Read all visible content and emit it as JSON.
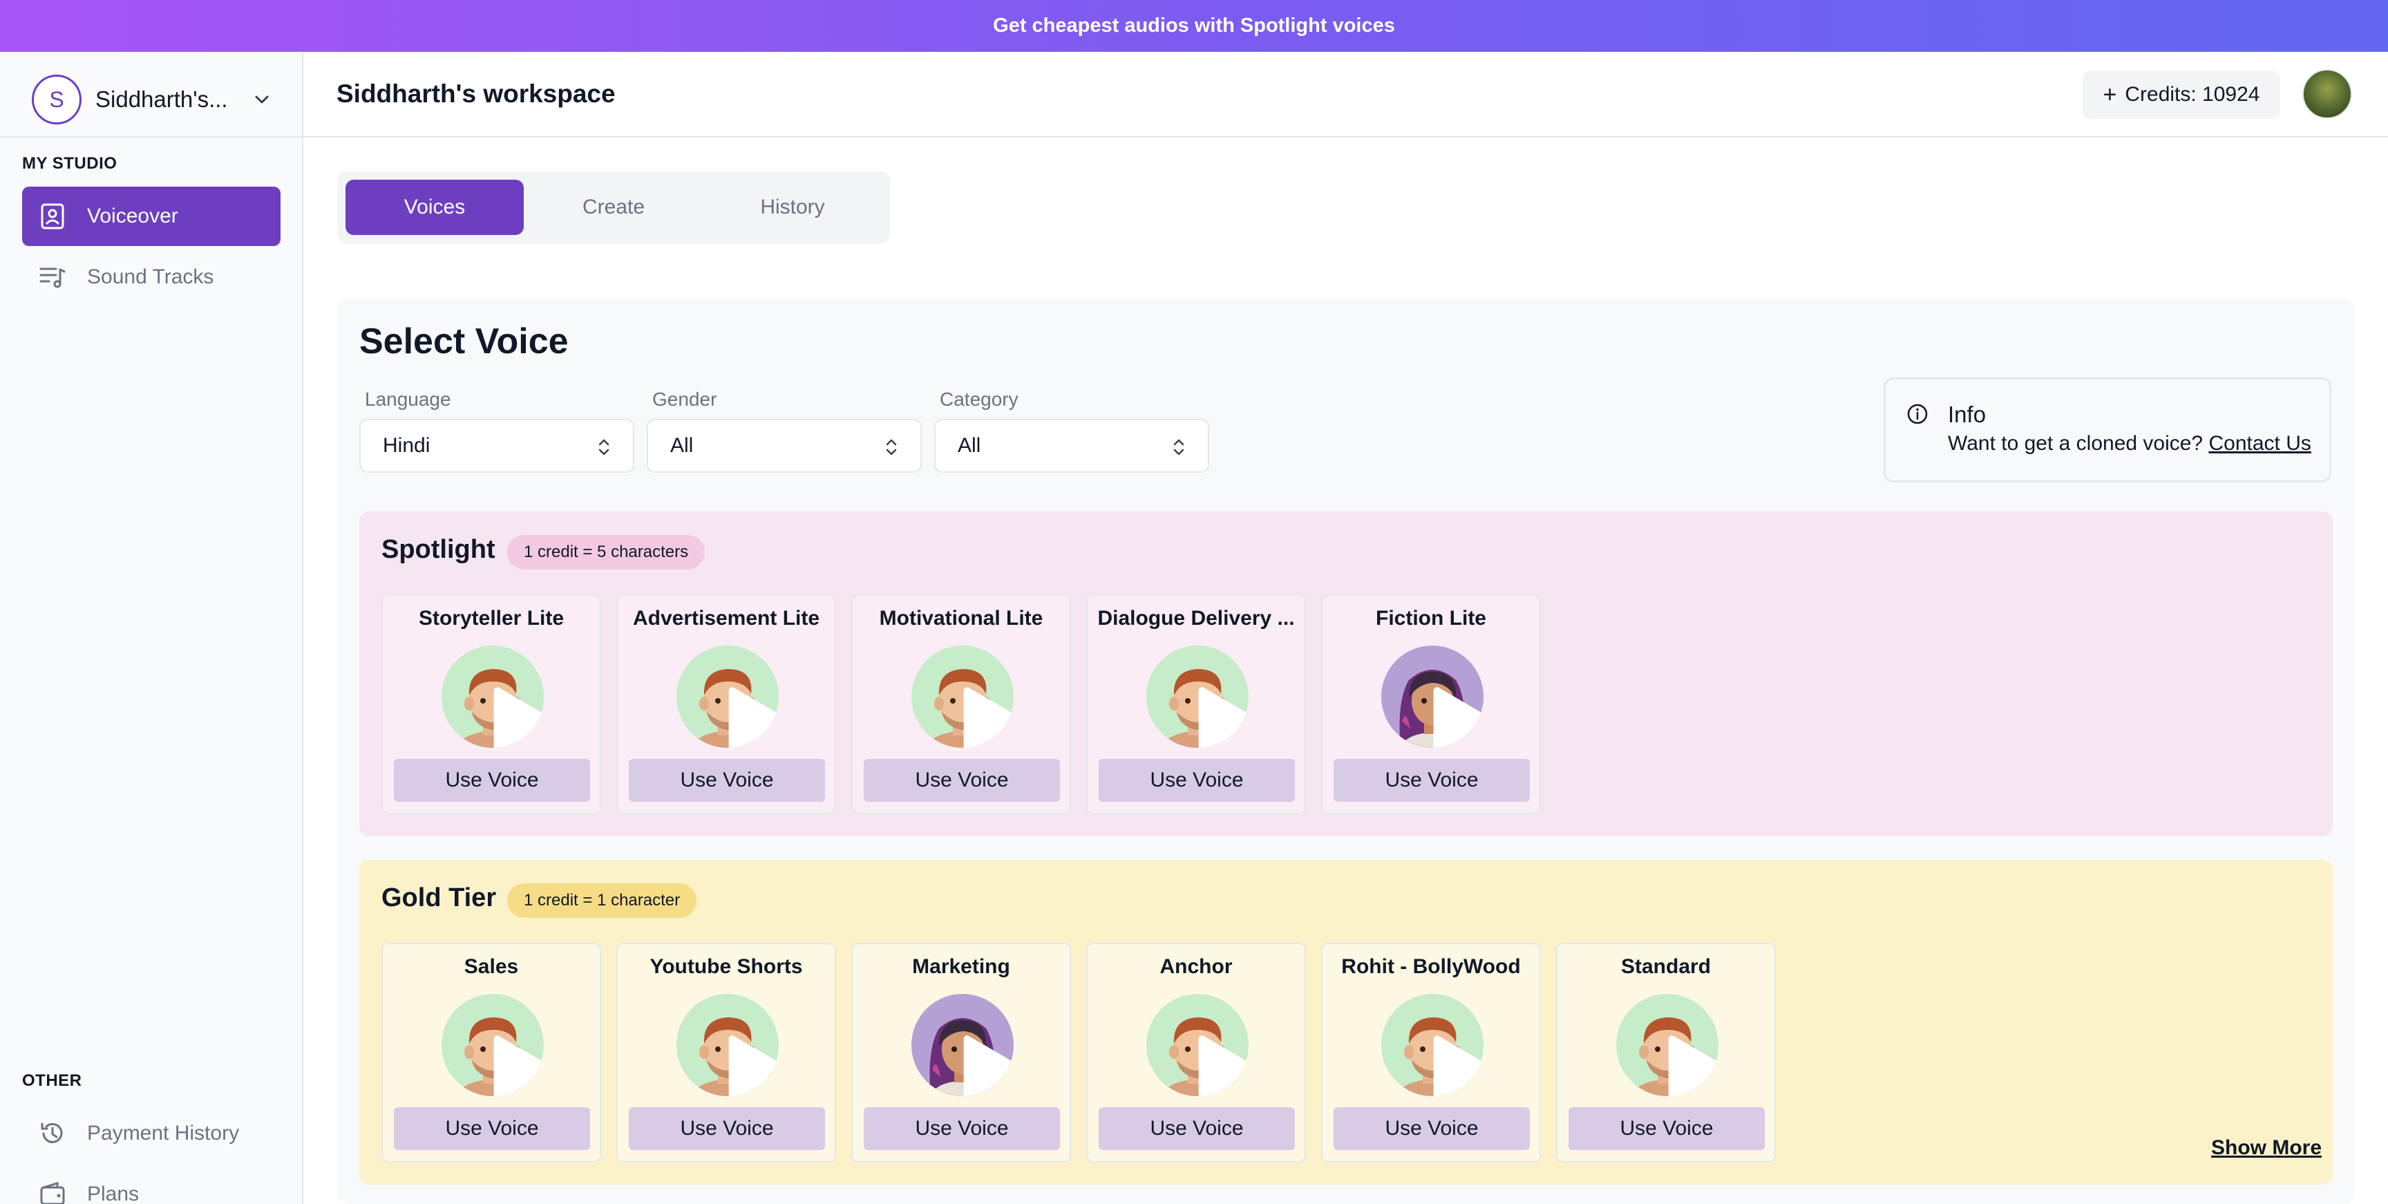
{
  "banner": {
    "text": "Get cheapest audios with Spotlight voices"
  },
  "sidebar": {
    "workspace_initial": "S",
    "workspace_name": "Siddharth's...",
    "section_studio": "MY STUDIO",
    "studio_items": [
      {
        "label": "Voiceover",
        "icon": "voiceover-icon",
        "active": true
      },
      {
        "label": "Sound Tracks",
        "icon": "sound-tracks-icon",
        "active": false
      }
    ],
    "section_other": "OTHER",
    "other_items": [
      {
        "label": "Payment History",
        "icon": "history-icon"
      },
      {
        "label": "Plans",
        "icon": "wallet-icon"
      }
    ]
  },
  "header": {
    "title": "Siddharth's workspace",
    "credits": "Credits: 10924"
  },
  "tabs": [
    {
      "label": "Voices",
      "active": true
    },
    {
      "label": "Create",
      "active": false
    },
    {
      "label": "History",
      "active": false
    }
  ],
  "select_voice": {
    "title": "Select Voice",
    "filters": [
      {
        "label": "Language",
        "value": "Hindi"
      },
      {
        "label": "Gender",
        "value": "All"
      },
      {
        "label": "Category",
        "value": "All"
      }
    ],
    "info": {
      "title": "Info",
      "text": "Want to get a cloned voice?",
      "link": "Contact Us"
    }
  },
  "tiers": {
    "spotlight": {
      "title": "Spotlight",
      "badge": "1 credit = 5 characters",
      "voices": [
        {
          "name": "Storyteller Lite",
          "avatar": "male",
          "button": "Use Voice"
        },
        {
          "name": "Advertisement Lite",
          "avatar": "male",
          "button": "Use Voice"
        },
        {
          "name": "Motivational Lite",
          "avatar": "male",
          "button": "Use Voice"
        },
        {
          "name": "Dialogue Delivery ...",
          "avatar": "male",
          "button": "Use Voice"
        },
        {
          "name": "Fiction Lite",
          "avatar": "female",
          "button": "Use Voice"
        }
      ]
    },
    "gold": {
      "title": "Gold Tier",
      "badge": "1 credit = 1 character",
      "voices": [
        {
          "name": "Sales",
          "avatar": "male",
          "button": "Use Voice"
        },
        {
          "name": "Youtube Shorts",
          "avatar": "male",
          "button": "Use Voice"
        },
        {
          "name": "Marketing",
          "avatar": "female",
          "button": "Use Voice"
        },
        {
          "name": "Anchor",
          "avatar": "male",
          "button": "Use Voice"
        },
        {
          "name": "Rohit - BollyWood",
          "avatar": "male",
          "button": "Use Voice"
        },
        {
          "name": "Standard",
          "avatar": "male",
          "button": "Use Voice"
        }
      ],
      "show_more": "Show More"
    }
  },
  "colors": {
    "accent": "#6d3fc0",
    "spotlight_bg": "#f6e6f1",
    "gold_bg": "#fcf2ca",
    "use_voice_btn": "#d8cbe6"
  }
}
